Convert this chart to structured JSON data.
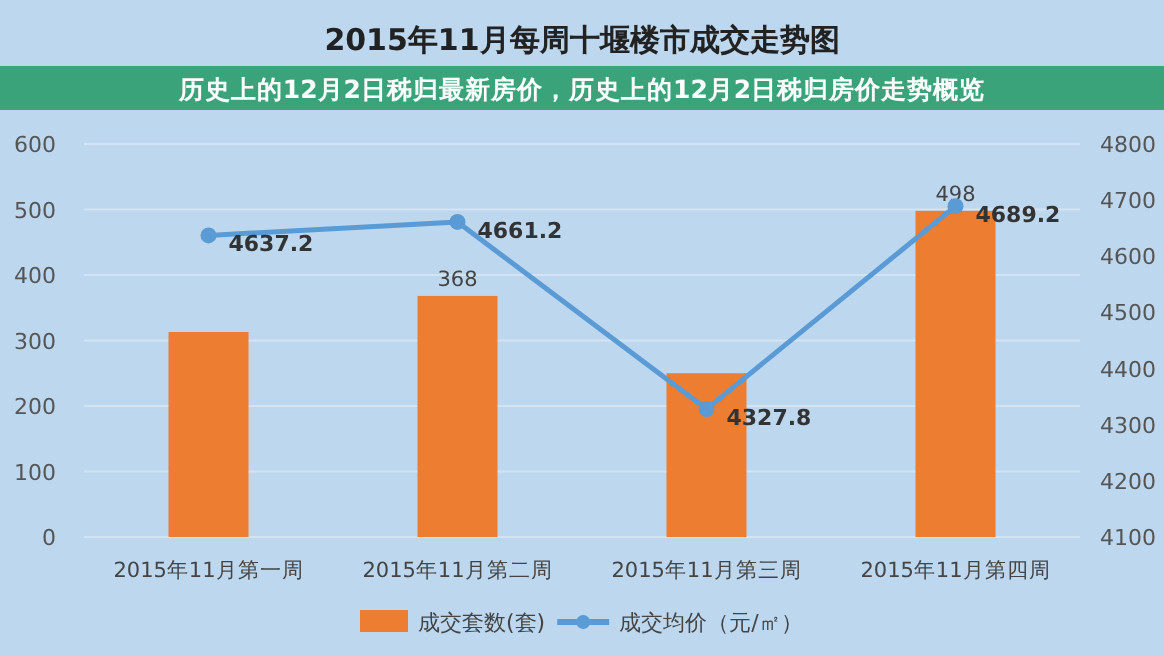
{
  "chart_data": {
    "type": "bar",
    "title": "2015年11月每周十堰楼市成交走势图",
    "subtitle": "历史上的12月2日秭归最新房价，历史上的12月2日秭归房价走势概览",
    "categories": [
      "2015年11月第一周",
      "2015年11月第二周",
      "2015年11月第三周",
      "2015年11月第四周"
    ],
    "series": [
      {
        "name": "成交套数(套)",
        "color": "#ed7d31",
        "values": [
          313,
          368,
          250,
          498
        ],
        "value_labels": [
          null,
          "368",
          null,
          "498"
        ]
      },
      {
        "name": "成交均价（元/㎡）",
        "type": "line",
        "axis": "y2",
        "color": "#5b9bd5",
        "marker": "circle",
        "values": [
          4637.2,
          4661.2,
          4327.8,
          4689.2
        ],
        "value_labels": [
          "4637.2",
          "4661.2",
          "4327.8",
          "4689.2"
        ]
      }
    ],
    "ylim": [
      0,
      600
    ],
    "yticks": [
      0,
      100,
      200,
      300,
      400,
      500,
      600
    ],
    "y2lim": [
      4100,
      4800
    ],
    "y2ticks": [
      4100,
      4200,
      4300,
      4400,
      4500,
      4600,
      4700,
      4800
    ],
    "grid": "y",
    "legend": "bottom"
  }
}
